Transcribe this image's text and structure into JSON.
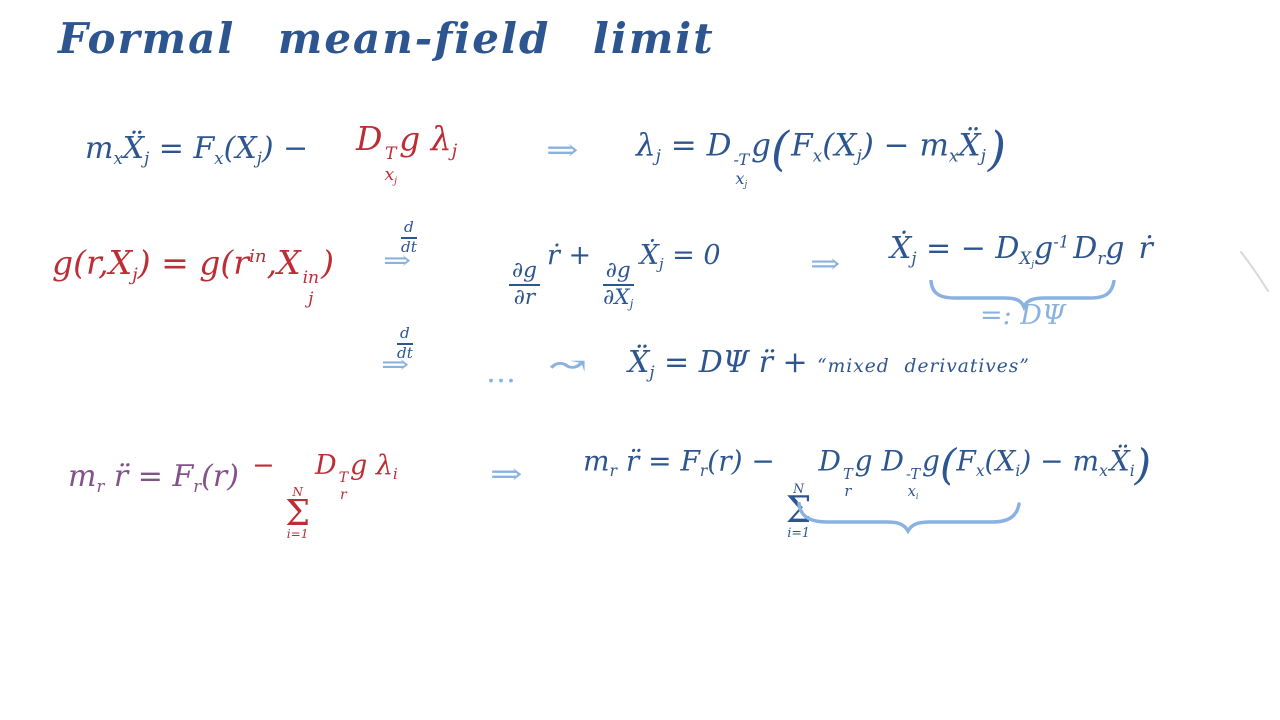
{
  "title": "Formal mean-field limit",
  "colors": {
    "ink_blue": "#2d5590",
    "ink_red": "#bc2d35",
    "ink_purple": "#84518c",
    "ink_lightblue": "#8ab2e0",
    "stray_gray": "#d9d9d9",
    "background": "#ffffff"
  },
  "symbols": {
    "implies": "⇒",
    "leadsto": "↝",
    "ellipsis": "…"
  },
  "annotations": {
    "dpsi_label": "=:  DΨ"
  },
  "equations": {
    "eq1_left": [
      {
        "t": "m",
        "sub": "x"
      },
      {
        "t": "Ẍ",
        "sub": "j"
      },
      {
        "t": " = "
      },
      {
        "t": "F",
        "sub": "x"
      },
      {
        "t": "("
      },
      {
        "t": "X",
        "sub": "j"
      },
      {
        "t": ") − "
      }
    ],
    "eq1_lambda_term": [
      {
        "t": "D",
        "sup": "T",
        "sub": [
          {
            "t": "x",
            "sub": "j"
          }
        ]
      },
      {
        "t": "g "
      },
      {
        "t": "λ",
        "sub": "j"
      }
    ],
    "eq1_solved": [
      {
        "t": "λ",
        "sub": "j"
      },
      {
        "t": " = "
      },
      {
        "t": "D",
        "sup": "-T",
        "sub": [
          {
            "t": "x",
            "sub": "j"
          }
        ]
      },
      {
        "t": "g"
      },
      {
        "big": "("
      },
      {
        "sp": 2
      },
      {
        "t": "F",
        "sub": "x"
      },
      {
        "t": "("
      },
      {
        "t": "X",
        "sub": "j"
      },
      {
        "t": ") − "
      },
      {
        "t": "m",
        "sub": "x"
      },
      {
        "t": "Ẍ",
        "sub": "j"
      },
      {
        "sp": 2
      },
      {
        "big": ")"
      }
    ],
    "eq2_constraint": [
      {
        "t": "g(r,"
      },
      {
        "t": "X",
        "sub": "j"
      },
      {
        "t": ") = g("
      },
      {
        "t": "r",
        "sup": "in"
      },
      {
        "t": ","
      },
      {
        "t": "X",
        "sup": "in",
        "sub": "j"
      },
      {
        "t": ")"
      }
    ],
    "ddt": [
      {
        "frac": [
          "d",
          "dt"
        ]
      }
    ],
    "eq2_differentiated": [
      {
        "frac": [
          "∂g",
          "∂r"
        ]
      },
      {
        "sp": 4
      },
      {
        "t": "ṙ + "
      },
      {
        "frac": [
          "∂g",
          [
            {
              "t": "∂X",
              "sub": "j"
            }
          ]
        ]
      },
      {
        "sp": 3
      },
      {
        "t": "Ẋ",
        "sub": "j"
      },
      {
        "t": " = 0"
      }
    ],
    "eq2_xdot": [
      {
        "t": "Ẋ",
        "sub": "j"
      },
      {
        "t": " = − "
      },
      {
        "t": "D",
        "sub": [
          {
            "t": "X",
            "sub": "j"
          }
        ]
      },
      {
        "t": "g",
        "sup": "-1"
      },
      {
        "sp": 4
      },
      {
        "t": "D",
        "sub": "r"
      },
      {
        "t": "g"
      },
      {
        "sp": 14
      },
      {
        "t": "ṙ"
      }
    ],
    "eq3_xddot": [
      {
        "t": "Ẍ",
        "sub": "j"
      },
      {
        "t": " = DΨ "
      },
      {
        "t": "r̈"
      },
      {
        "t": " + "
      },
      {
        "t": "“mixed  derivatives”",
        "small": true
      }
    ],
    "eq4_newton": [
      {
        "t": "m",
        "sub": "r"
      },
      {
        "t": " r̈ = "
      },
      {
        "t": "F",
        "sub": "r"
      },
      {
        "t": "(r)"
      }
    ],
    "eq4_sum_term": [
      {
        "t": "− "
      },
      {
        "sum": [
          "N",
          "i=1"
        ]
      },
      {
        "sp": 3
      },
      {
        "t": "D",
        "sup": "T",
        "sub": "r"
      },
      {
        "t": "g "
      },
      {
        "t": "λ",
        "sub": "i"
      }
    ],
    "eq4_meanfield": [
      {
        "t": "m",
        "sub": "r"
      },
      {
        "t": " r̈ = "
      },
      {
        "t": "F",
        "sub": "r"
      },
      {
        "t": "(r) − "
      },
      {
        "sum": [
          "N",
          "i=1"
        ]
      },
      {
        "sp": 5
      },
      {
        "t": "D",
        "sup": "T",
        "sub": "r"
      },
      {
        "t": "g "
      },
      {
        "t": "D",
        "sup": "-T",
        "sub": [
          {
            "t": "x",
            "sub": "i"
          }
        ]
      },
      {
        "t": "g"
      },
      {
        "big": "("
      },
      {
        "t": "F",
        "sub": "x"
      },
      {
        "t": "("
      },
      {
        "t": "X",
        "sub": "i"
      },
      {
        "t": ") − "
      },
      {
        "t": "m",
        "sub": "x"
      },
      {
        "sp": 2
      },
      {
        "t": "Ẍ",
        "sub": "i"
      },
      {
        "big": ")"
      }
    ]
  }
}
